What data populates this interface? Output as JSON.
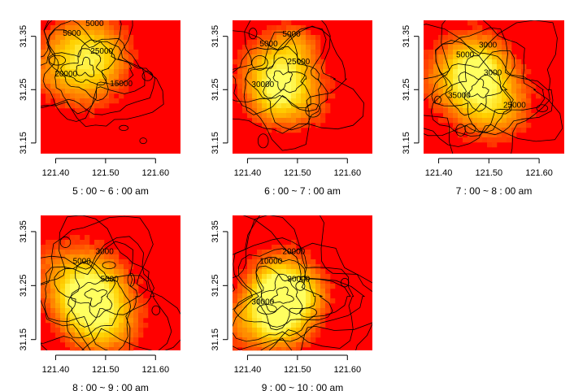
{
  "chart_data": {
    "type": "heatmap",
    "colormap": [
      "#ff0000",
      "#ff8000",
      "#ffd000",
      "#ffff60"
    ],
    "contour_color": "#000000",
    "panels": [
      {
        "xlabel": "5 : 00 ~ 6 : 00 am",
        "xticks": [
          "121.40",
          "121.50",
          "121.60"
        ],
        "yticks": [
          "31.15",
          "31.25",
          "31.35"
        ],
        "xlim": [
          121.37,
          121.65
        ],
        "ylim": [
          31.13,
          31.38
        ],
        "peak": {
          "x": 121.46,
          "y": 31.29
        },
        "peak_level": 0.55,
        "contour_labels": [
          "5000",
          "5000",
          "25000",
          "20000",
          "15000"
        ]
      },
      {
        "xlabel": "6 : 00 ~ 7 : 00 am",
        "xticks": [
          "121.40",
          "121.50",
          "121.60"
        ],
        "yticks": [
          "31.15",
          "31.25",
          "31.35"
        ],
        "xlim": [
          121.37,
          121.65
        ],
        "ylim": [
          31.13,
          31.38
        ],
        "peak": {
          "x": 121.47,
          "y": 31.27
        },
        "peak_level": 0.62,
        "contour_labels": [
          "5000",
          "5000",
          "25000",
          "30000"
        ]
      },
      {
        "xlabel": "7 : 00 ~ 8 : 00 am",
        "xticks": [
          "121.40",
          "121.50",
          "121.60"
        ],
        "yticks": [
          "31.15",
          "31.25",
          "31.35"
        ],
        "xlim": [
          121.37,
          121.65
        ],
        "ylim": [
          31.13,
          31.38
        ],
        "peak": {
          "x": 121.48,
          "y": 31.25
        },
        "peak_level": 0.72,
        "contour_labels": [
          "5000",
          "3000",
          "3000",
          "35000",
          "25000"
        ]
      },
      {
        "xlabel": "8 : 00 ~ 9 : 00 am",
        "xticks": [
          "121.40",
          "121.50",
          "121.60"
        ],
        "yticks": [
          "31.15",
          "31.25",
          "31.35"
        ],
        "xlim": [
          121.37,
          121.65
        ],
        "ylim": [
          31.13,
          31.38
        ],
        "peak": {
          "x": 121.48,
          "y": 31.23
        },
        "peak_level": 0.85,
        "contour_labels": [
          "5000",
          "3000",
          "5000"
        ]
      },
      {
        "xlabel": "9 : 00 ~ 10 : 00 am",
        "xticks": [
          "121.40",
          "121.50",
          "121.60"
        ],
        "yticks": [
          "31.15",
          "31.25",
          "31.35"
        ],
        "xlim": [
          121.37,
          121.65
        ],
        "ylim": [
          31.13,
          31.38
        ],
        "peak": {
          "x": 121.47,
          "y": 31.23
        },
        "peak_level": 1.0,
        "contour_labels": [
          "10000",
          "20000",
          "30000",
          "30000"
        ]
      }
    ]
  }
}
